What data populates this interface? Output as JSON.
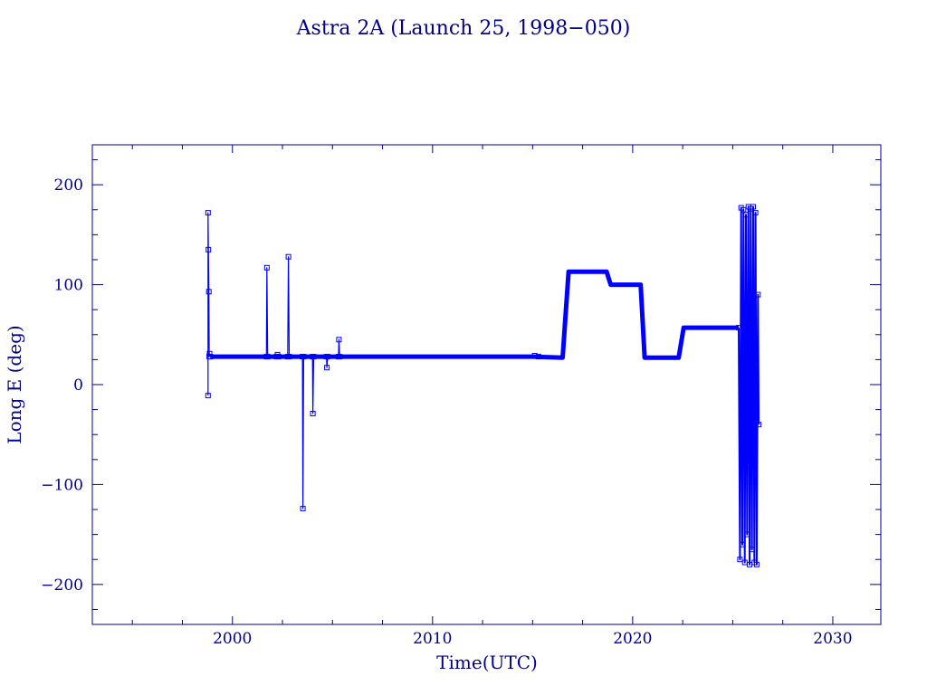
{
  "chart_data": {
    "type": "line",
    "title": "Astra 2A (Launch 25, 1998−050)",
    "xlabel": "Time(UTC)",
    "ylabel": "Long E (deg)",
    "xlim": [
      1993,
      2032.4
    ],
    "ylim": [
      -240,
      240
    ],
    "x_ticks": [
      2000,
      2010,
      2020,
      2030
    ],
    "x_tick_labels": [
      "2000",
      "2010",
      "2020",
      "2030"
    ],
    "y_ticks": [
      200,
      100,
      0,
      -100,
      -200
    ],
    "y_tick_labels": [
      "200",
      "100",
      "0",
      "−100",
      "−200"
    ],
    "grid": false,
    "colors": {
      "frame": "#00008b",
      "series": "#0000ff"
    },
    "series": [
      {
        "style": "thin-with-markers",
        "points": [
          [
            1998.78,
            -11
          ],
          [
            1998.78,
            172
          ],
          [
            1998.8,
            135
          ],
          [
            1998.82,
            93
          ],
          [
            1998.84,
            28
          ],
          [
            1998.86,
            31
          ],
          [
            1998.9,
            28
          ],
          [
            2001.7,
            28
          ],
          [
            2001.72,
            117
          ],
          [
            2001.76,
            28
          ],
          [
            2002.2,
            28
          ],
          [
            2002.25,
            30
          ],
          [
            2002.3,
            28
          ],
          [
            2002.76,
            28
          ],
          [
            2002.8,
            128
          ],
          [
            2002.84,
            28
          ],
          [
            2003.5,
            28
          ],
          [
            2003.52,
            -124
          ],
          [
            2003.56,
            28
          ],
          [
            2004.0,
            28
          ],
          [
            2004.02,
            -29
          ],
          [
            2004.06,
            28
          ],
          [
            2004.7,
            28
          ],
          [
            2004.72,
            17
          ],
          [
            2004.76,
            28
          ],
          [
            2005.3,
            28
          ],
          [
            2005.32,
            45
          ],
          [
            2005.36,
            28
          ],
          [
            2015.1,
            29
          ],
          [
            2015.3,
            28
          ]
        ]
      },
      {
        "style": "thick-line",
        "points": [
          [
            1998.9,
            28
          ],
          [
            2015.0,
            28
          ],
          [
            2016.5,
            27
          ],
          [
            2016.8,
            113
          ],
          [
            2018.7,
            113
          ],
          [
            2018.9,
            100
          ],
          [
            2020.4,
            100
          ],
          [
            2020.6,
            27
          ],
          [
            2022.3,
            27
          ],
          [
            2022.55,
            57
          ],
          [
            2025.3,
            57
          ]
        ]
      },
      {
        "style": "oscillating-band",
        "points": [
          [
            2025.3,
            57
          ],
          [
            2025.36,
            -175
          ],
          [
            2025.42,
            177
          ],
          [
            2025.48,
            -160
          ],
          [
            2025.54,
            175
          ],
          [
            2025.6,
            -178
          ],
          [
            2025.66,
            170
          ],
          [
            2025.72,
            -150
          ],
          [
            2025.78,
            178
          ],
          [
            2025.84,
            -180
          ],
          [
            2025.9,
            176
          ],
          [
            2025.96,
            -165
          ],
          [
            2026.02,
            178
          ],
          [
            2026.08,
            -178
          ],
          [
            2026.14,
            172
          ],
          [
            2026.2,
            -180
          ],
          [
            2026.26,
            90
          ],
          [
            2026.3,
            -40
          ]
        ]
      }
    ]
  }
}
